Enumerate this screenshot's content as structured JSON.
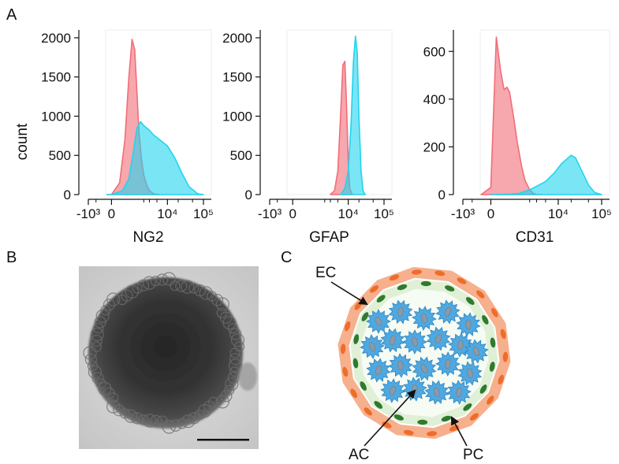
{
  "panels": {
    "a_label": "A",
    "b_label": "B",
    "c_label": "C"
  },
  "y_axis_label": "count",
  "chart_data": [
    {
      "type": "area",
      "xlabel": "NG2",
      "ylabel": "count",
      "x_scale": "biexponential",
      "x_tick_labels": [
        "-10³",
        "0",
        "10⁴",
        "10⁵"
      ],
      "y_tick_labels": [
        "0",
        "500",
        "1000",
        "1500",
        "2000"
      ],
      "ylim": [
        0,
        2100
      ],
      "series": [
        {
          "color": "#f26d78",
          "x": [
            -100,
            0,
            200,
            400,
            600,
            800,
            1000,
            1200,
            1400,
            1700,
            2000,
            2500,
            3000,
            4000,
            6000
          ],
          "values": [
            0,
            0,
            150,
            700,
            1500,
            1980,
            1850,
            1300,
            800,
            450,
            250,
            120,
            50,
            10,
            0
          ]
        },
        {
          "color": "#22d4ee",
          "x": [
            -100,
            0,
            300,
            600,
            900,
            1200,
            1600,
            2000,
            3000,
            4000,
            6000,
            10000,
            16000,
            25000,
            40000,
            70000,
            100000
          ],
          "values": [
            0,
            0,
            50,
            200,
            550,
            850,
            930,
            880,
            820,
            760,
            700,
            620,
            470,
            280,
            100,
            10,
            0
          ]
        }
      ]
    },
    {
      "type": "area",
      "xlabel": "GFAP",
      "ylabel": "",
      "x_scale": "biexponential",
      "x_tick_labels": [
        "-10³",
        "0",
        "10⁴",
        "10⁵"
      ],
      "y_tick_labels": [
        "0",
        "500",
        "1000",
        "1500",
        "2000"
      ],
      "ylim": [
        0,
        2100
      ],
      "series": [
        {
          "color": "#f26d78",
          "x": [
            3000,
            4000,
            5000,
            6000,
            7000,
            8000,
            9000,
            10000,
            11000,
            13000
          ],
          "values": [
            0,
            50,
            300,
            1000,
            1650,
            1700,
            1100,
            400,
            80,
            0
          ]
        },
        {
          "color": "#22d4ee",
          "x": [
            6000,
            8000,
            10000,
            12000,
            14000,
            16000,
            18000,
            20000,
            23000,
            26000,
            30000
          ],
          "values": [
            0,
            80,
            300,
            900,
            1700,
            2020,
            1800,
            1000,
            300,
            50,
            0
          ]
        }
      ]
    },
    {
      "type": "area",
      "xlabel": "CD31",
      "ylabel": "",
      "x_scale": "biexponential",
      "x_tick_labels": [
        "-10³",
        "0",
        "10⁴",
        "10⁵"
      ],
      "y_tick_labels": [
        "0",
        "200",
        "400",
        "600"
      ],
      "ylim": [
        0,
        690
      ],
      "series": [
        {
          "color": "#f26d78",
          "x": [
            -200,
            0,
            100,
            200,
            300,
            400,
            500,
            700,
            900,
            1200,
            1500,
            2000,
            2500,
            3000,
            4000
          ],
          "values": [
            0,
            30,
            660,
            520,
            440,
            450,
            430,
            320,
            220,
            120,
            60,
            20,
            5,
            0,
            0
          ]
        },
        {
          "color": "#22d4ee",
          "x": [
            0,
            500,
            1000,
            2000,
            3000,
            5000,
            8000,
            12000,
            16000,
            20000,
            25000,
            35000,
            50000,
            70000,
            100000
          ],
          "values": [
            0,
            2,
            5,
            20,
            35,
            55,
            90,
            130,
            150,
            165,
            155,
            100,
            40,
            8,
            0
          ]
        }
      ]
    }
  ],
  "photo": {
    "scale_bar": true
  },
  "diagram": {
    "labels": {
      "ec": "EC",
      "ac": "AC",
      "pc": "PC"
    },
    "colors": {
      "outer_ring": "#f6b08d",
      "endothelial_nuclei": "#ee6d2a",
      "pericyte_zone": "#dff0d6",
      "pericyte_nuclei": "#2f7a2f",
      "astrocyte": "#4fa8e0",
      "astrocyte_nuclei": "#8a9aa8"
    }
  }
}
